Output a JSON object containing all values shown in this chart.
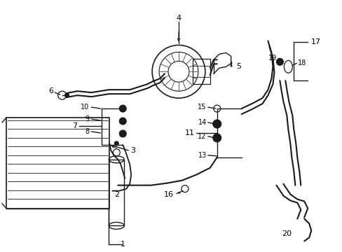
{
  "bg_color": "#ffffff",
  "line_color": "#1a1a1a",
  "text_color": "#000000",
  "fig_width": 4.89,
  "fig_height": 3.6,
  "dpi": 100
}
